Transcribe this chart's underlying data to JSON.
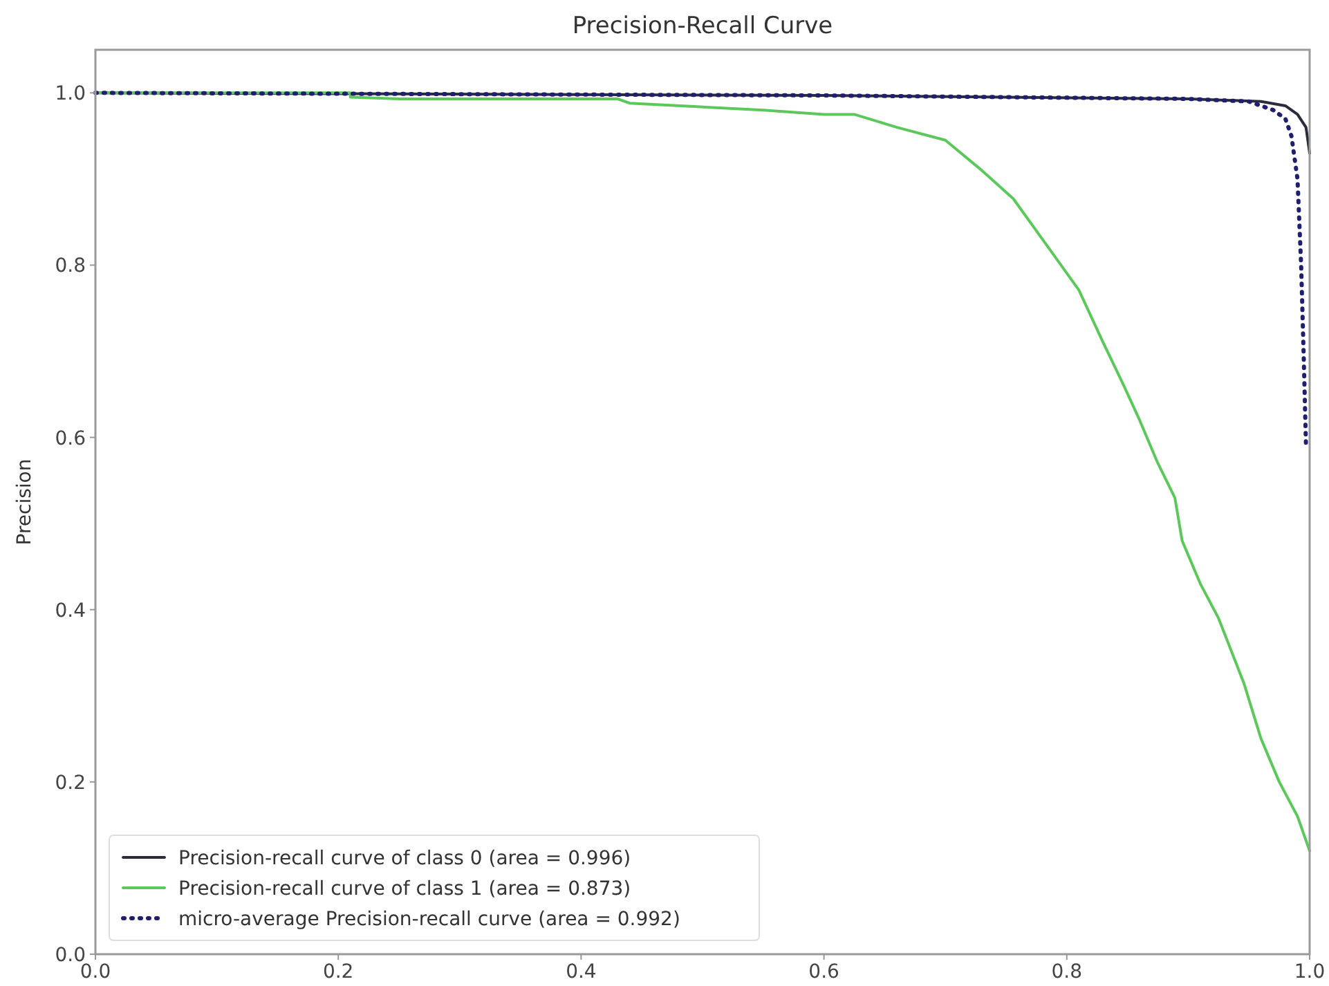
{
  "chart_data": {
    "type": "line",
    "title": "Precision-Recall Curve",
    "ylabel": "Precision",
    "xlim": [
      0,
      1
    ],
    "xticks": [
      {
        "value": 0,
        "label": "0.0"
      },
      0.2,
      0.4,
      0.6,
      0.8,
      {
        "value": 1,
        "label": "1.0"
      }
    ],
    "ylim": [
      0,
      1.05
    ],
    "yticks": [
      {
        "value": 0,
        "label": "0.0"
      },
      0.2,
      0.4,
      0.6,
      0.8,
      {
        "value": 1,
        "label": "1.0"
      }
    ],
    "grid": false,
    "legend": "bottom left",
    "series": [
      {
        "name": "Precision-recall curve of class 0 (area = 0.996)",
        "color": "#2b2b3a",
        "line_style": "solid",
        "x": [
          0,
          0.6,
          0.9,
          0.96,
          0.98,
          0.99,
          0.997,
          1.0
        ],
        "values": [
          1.0,
          0.997,
          0.993,
          0.99,
          0.985,
          0.975,
          0.96,
          0.93
        ]
      },
      {
        "name": "Precision-recall curve of class 1 (area = 0.873)",
        "color": "#5cc85c",
        "line_style": "solid",
        "x": [
          0,
          0.21,
          0.21,
          0.25,
          0.43,
          0.44,
          0.55,
          0.6,
          0.625,
          0.66,
          0.7,
          0.73,
          0.756,
          0.78,
          0.81,
          0.83,
          0.847,
          0.86,
          0.875,
          0.889,
          0.895,
          0.91,
          0.925,
          0.946,
          0.96,
          0.975,
          0.99,
          1.0
        ],
        "values": [
          1.0,
          1.0,
          0.995,
          0.993,
          0.993,
          0.988,
          0.98,
          0.975,
          0.975,
          0.96,
          0.945,
          0.91,
          0.877,
          0.83,
          0.771,
          0.71,
          0.66,
          0.62,
          0.57,
          0.53,
          0.48,
          0.43,
          0.39,
          0.314,
          0.25,
          0.2,
          0.16,
          0.12
        ]
      },
      {
        "name": "micro-average Precision-recall curve (area = 0.992)",
        "color": "#1f1f6e",
        "line_style": "dotted",
        "x": [
          0,
          0.6,
          0.9,
          0.95,
          0.97,
          0.98,
          0.985,
          0.99,
          0.993,
          0.995,
          0.997
        ],
        "values": [
          1.0,
          0.997,
          0.993,
          0.99,
          0.98,
          0.97,
          0.95,
          0.9,
          0.8,
          0.7,
          0.59
        ]
      }
    ]
  }
}
